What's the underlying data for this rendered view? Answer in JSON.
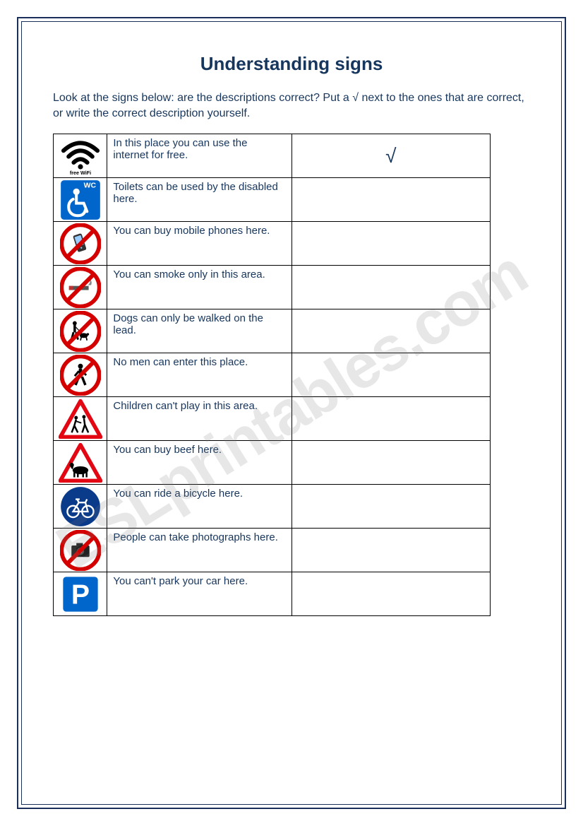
{
  "title": "Understanding signs",
  "instructions_pre": "Look at the signs below: are the descriptions correct? Put a ",
  "instructions_check": "√",
  "instructions_post": " next to the ones that are correct, or write the correct description yourself.",
  "watermark": "ESLprintables.com",
  "colors": {
    "frame": "#1a2f5a",
    "text": "#17365d",
    "prohibition_red": "#d40000",
    "warning_red": "#e30613",
    "info_blue": "#0066cc",
    "wifi_black": "#000000",
    "white": "#ffffff"
  },
  "rows": [
    {
      "icon": "wifi",
      "desc": "In this place you can use the internet for free.",
      "answer": "√"
    },
    {
      "icon": "wc-disabled",
      "desc": "Toilets can be used by the disabled here.",
      "answer": ""
    },
    {
      "icon": "no-phones",
      "desc": "You can buy mobile phones here.",
      "answer": ""
    },
    {
      "icon": "no-smoking",
      "desc": "You can smoke only in this area.",
      "answer": ""
    },
    {
      "icon": "no-dogs-walk",
      "desc": "Dogs can only be walked on the lead.",
      "answer": ""
    },
    {
      "icon": "no-peds",
      "desc": "No men can enter this place.",
      "answer": ""
    },
    {
      "icon": "children",
      "desc": "Children can't play in this area.",
      "answer": ""
    },
    {
      "icon": "cattle",
      "desc": "You can buy beef here.",
      "answer": ""
    },
    {
      "icon": "bicycle",
      "desc": "You can ride a bicycle here.",
      "answer": ""
    },
    {
      "icon": "no-camera",
      "desc": "People can take photographs here.",
      "answer": ""
    },
    {
      "icon": "parking",
      "desc": "You can't park your car here.",
      "answer": ""
    }
  ]
}
